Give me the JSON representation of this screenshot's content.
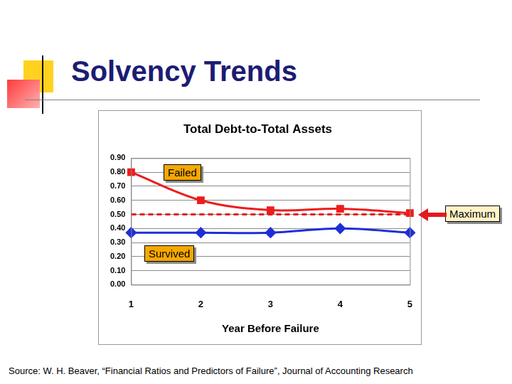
{
  "slide": {
    "title": "Solvency Trends",
    "source": "Source: W. H. Beaver, “Financial Ratios and Predictors of Failure”, Journal of Accounting Research"
  },
  "chart_data": {
    "type": "line",
    "title": "Total Debt-to-Total Assets",
    "x_label": "Year Before Failure",
    "categories": [
      "1",
      "2",
      "3",
      "4",
      "5"
    ],
    "series": [
      {
        "name": "Failed",
        "color": "#ee1c1c",
        "marker": "square",
        "line_style": "solid",
        "values": [
          0.8,
          0.6,
          0.53,
          0.54,
          0.51
        ]
      },
      {
        "name": "Survived",
        "color": "#1f2fd6",
        "marker": "diamond",
        "line_style": "solid",
        "values": [
          0.37,
          0.37,
          0.37,
          0.4,
          0.37
        ]
      },
      {
        "name": "Maximum",
        "color": "#e41a1c",
        "marker": "none",
        "line_style": "dashed",
        "values": [
          0.5,
          0.5,
          0.5,
          0.5,
          0.5
        ]
      }
    ],
    "ylim": [
      0,
      0.9
    ],
    "yticks": [
      {
        "value": 0,
        "label": "0.00"
      },
      {
        "value": 0.1,
        "label": "0.10"
      },
      {
        "value": 0.2,
        "label": "0.20"
      },
      {
        "value": 0.3,
        "label": "0.30"
      },
      {
        "value": 0.4,
        "label": "0.40"
      },
      {
        "value": 0.5,
        "label": "0.50"
      },
      {
        "value": 0.6,
        "label": "0.60"
      },
      {
        "value": 0.7,
        "label": "0.70"
      },
      {
        "value": 0.8,
        "label": "0.80"
      },
      {
        "value": 0.9,
        "label": "0.90"
      }
    ],
    "grid": true
  }
}
